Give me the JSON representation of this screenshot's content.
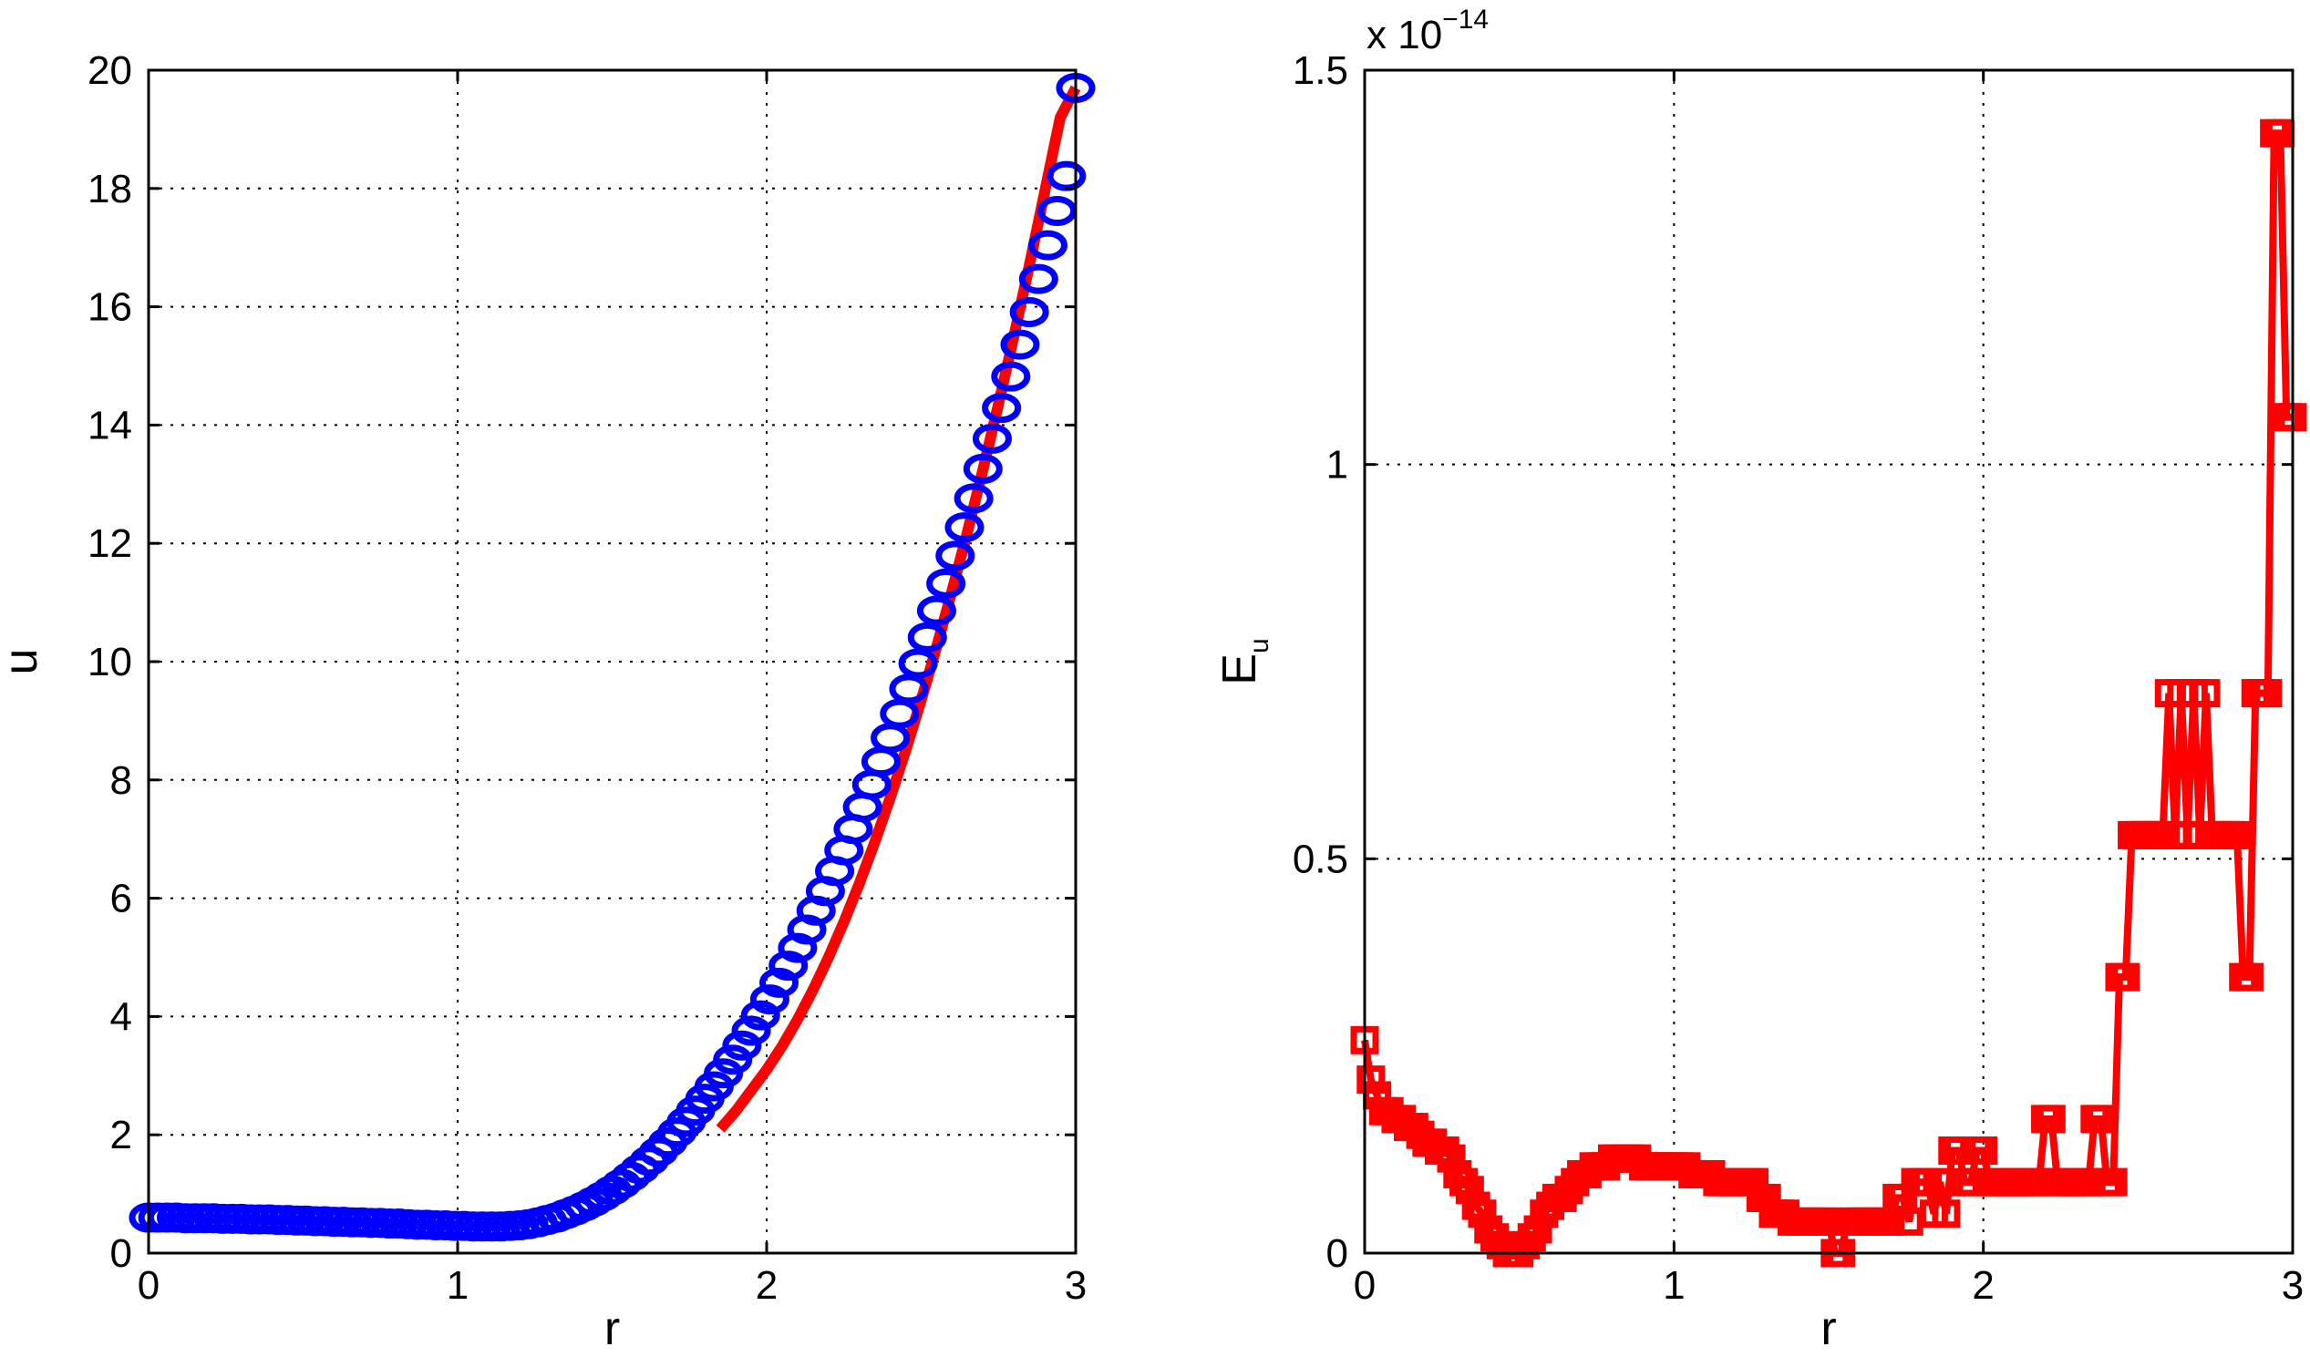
{
  "chart_data": [
    {
      "type": "line",
      "xlabel": "r",
      "ylabel": "u",
      "xlim": [
        0,
        3
      ],
      "ylim": [
        0,
        20
      ],
      "xticks": [
        "0",
        "1",
        "2",
        "3"
      ],
      "yticks": [
        "0",
        "2",
        "4",
        "6",
        "8",
        "10",
        "12",
        "14",
        "16",
        "18",
        "20"
      ],
      "grid": true,
      "series": [
        {
          "style": "blue-circles",
          "color": "#0000ff",
          "x": [
            0.0,
            0.03,
            0.06,
            0.09,
            0.12,
            0.15,
            0.18,
            0.21,
            0.24,
            0.27,
            0.3,
            0.33,
            0.36,
            0.39,
            0.42,
            0.45,
            0.48,
            0.51,
            0.54,
            0.57,
            0.6,
            0.63,
            0.66,
            0.69,
            0.72,
            0.75,
            0.78,
            0.81,
            0.84,
            0.87,
            0.9,
            0.93,
            0.96,
            0.99,
            1.02,
            1.05,
            1.08,
            1.11,
            1.14,
            1.17,
            1.2,
            1.23,
            1.26,
            1.29,
            1.32,
            1.35,
            1.38,
            1.41,
            1.44,
            1.47,
            1.5,
            1.53,
            1.56,
            1.59,
            1.62,
            1.65,
            1.68,
            1.71,
            1.74,
            1.77,
            1.8,
            1.83,
            1.86,
            1.89,
            1.92,
            1.95,
            1.98,
            2.01,
            2.04,
            2.07,
            2.1,
            2.13,
            2.16,
            2.19,
            2.22,
            2.25,
            2.28,
            2.31,
            2.34,
            2.37,
            2.4,
            2.43,
            2.46,
            2.49,
            2.52,
            2.55,
            2.58,
            2.61,
            2.64,
            2.67,
            2.7,
            2.73,
            2.76,
            2.79,
            2.82,
            2.85,
            2.88,
            2.91,
            2.94,
            2.97,
            3.0
          ],
          "y": [
            0.6,
            0.6,
            0.6,
            0.6,
            0.59,
            0.59,
            0.59,
            0.59,
            0.58,
            0.58,
            0.58,
            0.57,
            0.57,
            0.57,
            0.56,
            0.56,
            0.55,
            0.55,
            0.54,
            0.54,
            0.53,
            0.53,
            0.52,
            0.52,
            0.51,
            0.51,
            0.5,
            0.5,
            0.49,
            0.48,
            0.48,
            0.47,
            0.47,
            0.46,
            0.46,
            0.45,
            0.45,
            0.45,
            0.45,
            0.46,
            0.47,
            0.49,
            0.52,
            0.56,
            0.6,
            0.66,
            0.72,
            0.79,
            0.87,
            0.96,
            1.06,
            1.17,
            1.29,
            1.42,
            1.56,
            1.71,
            1.87,
            2.04,
            2.22,
            2.41,
            2.61,
            2.82,
            3.04,
            3.27,
            3.51,
            3.76,
            4.02,
            4.29,
            4.57,
            4.86,
            5.16,
            5.47,
            5.79,
            6.12,
            6.46,
            6.81,
            7.17,
            7.54,
            7.92,
            8.31,
            8.71,
            9.12,
            9.54,
            9.97,
            10.41,
            10.86,
            11.32,
            11.79,
            12.27,
            12.76,
            13.26,
            13.77,
            14.29,
            14.82,
            15.36,
            15.91,
            16.47,
            17.04,
            17.62,
            18.21,
            19.7
          ]
        },
        {
          "style": "red-line",
          "color": "#ff0000",
          "x": [
            1.85,
            1.9,
            1.95,
            2.0,
            2.05,
            2.1,
            2.15,
            2.2,
            2.25,
            2.3,
            2.35,
            2.4,
            2.45,
            2.5,
            2.55,
            2.6,
            2.65,
            2.7,
            2.75,
            2.8,
            2.85,
            2.9,
            2.95,
            3.0
          ],
          "y": [
            2.1,
            2.4,
            2.75,
            3.1,
            3.5,
            3.95,
            4.45,
            5.0,
            5.6,
            6.25,
            6.95,
            7.7,
            8.5,
            9.35,
            10.25,
            11.2,
            12.2,
            13.25,
            14.35,
            15.5,
            16.7,
            17.95,
            19.2,
            19.7
          ]
        }
      ]
    },
    {
      "type": "line",
      "xlabel": "r",
      "ylabel": "E",
      "ylabel_subscript": "u",
      "exponent_label": "x 10",
      "exponent_power": "−14",
      "xlim": [
        0,
        3
      ],
      "ylim": [
        0,
        1.5
      ],
      "xticks": [
        "0",
        "1",
        "2",
        "3"
      ],
      "yticks": [
        "0",
        "0.5",
        "1",
        "1.5"
      ],
      "grid": true,
      "series": [
        {
          "style": "red-squares",
          "color": "#ff0000",
          "x": [
            0.0,
            0.02,
            0.04,
            0.06,
            0.08,
            0.1,
            0.12,
            0.14,
            0.16,
            0.18,
            0.2,
            0.22,
            0.24,
            0.26,
            0.28,
            0.3,
            0.32,
            0.34,
            0.36,
            0.38,
            0.4,
            0.42,
            0.44,
            0.46,
            0.48,
            0.5,
            0.52,
            0.54,
            0.56,
            0.58,
            0.6,
            0.62,
            0.64,
            0.66,
            0.68,
            0.7,
            0.72,
            0.74,
            0.76,
            0.78,
            0.8,
            0.82,
            0.84,
            0.86,
            0.88,
            0.9,
            0.92,
            0.94,
            0.96,
            0.98,
            1.0,
            1.02,
            1.04,
            1.06,
            1.08,
            1.1,
            1.12,
            1.14,
            1.16,
            1.18,
            1.2,
            1.22,
            1.24,
            1.26,
            1.28,
            1.3,
            1.32,
            1.34,
            1.36,
            1.38,
            1.4,
            1.42,
            1.44,
            1.46,
            1.48,
            1.5,
            1.52,
            1.54,
            1.56,
            1.58,
            1.6,
            1.62,
            1.64,
            1.66,
            1.68,
            1.7,
            1.72,
            1.74,
            1.76,
            1.78,
            1.8,
            1.82,
            1.84,
            1.86,
            1.88,
            1.9,
            1.92,
            1.94,
            1.96,
            1.98,
            2.0,
            2.02,
            2.04,
            2.06,
            2.08,
            2.1,
            2.12,
            2.14,
            2.16,
            2.18,
            2.2,
            2.22,
            2.24,
            2.26,
            2.28,
            2.3,
            2.32,
            2.34,
            2.36,
            2.38,
            2.4,
            2.42,
            2.44,
            2.46,
            2.48,
            2.5,
            2.52,
            2.54,
            2.56,
            2.58,
            2.6,
            2.62,
            2.64,
            2.66,
            2.68,
            2.7,
            2.72,
            2.74,
            2.76,
            2.78,
            2.8,
            2.82,
            2.84,
            2.86,
            2.88,
            2.9,
            2.92,
            2.94,
            2.96,
            2.98,
            3.0
          ],
          "y": [
            0.27,
            0.22,
            0.2,
            0.18,
            0.18,
            0.17,
            0.17,
            0.16,
            0.16,
            0.15,
            0.14,
            0.14,
            0.13,
            0.13,
            0.12,
            0.1,
            0.09,
            0.08,
            0.06,
            0.05,
            0.03,
            0.02,
            0.01,
            0.0,
            0.0,
            0.0,
            0.01,
            0.02,
            0.03,
            0.05,
            0.06,
            0.07,
            0.07,
            0.08,
            0.09,
            0.1,
            0.1,
            0.11,
            0.11,
            0.11,
            0.12,
            0.12,
            0.12,
            0.12,
            0.12,
            0.11,
            0.11,
            0.11,
            0.11,
            0.11,
            0.11,
            0.11,
            0.11,
            0.1,
            0.1,
            0.1,
            0.1,
            0.09,
            0.09,
            0.09,
            0.09,
            0.09,
            0.09,
            0.09,
            0.07,
            0.07,
            0.05,
            0.05,
            0.05,
            0.04,
            0.04,
            0.04,
            0.04,
            0.04,
            0.04,
            0.04,
            0.0,
            0.0,
            0.04,
            0.04,
            0.04,
            0.04,
            0.04,
            0.04,
            0.04,
            0.04,
            0.07,
            0.07,
            0.04,
            0.09,
            0.09,
            0.09,
            0.05,
            0.09,
            0.05,
            0.13,
            0.13,
            0.09,
            0.09,
            0.13,
            0.13,
            0.09,
            0.09,
            0.09,
            0.09,
            0.09,
            0.09,
            0.09,
            0.09,
            0.09,
            0.17,
            0.17,
            0.09,
            0.09,
            0.09,
            0.09,
            0.09,
            0.09,
            0.17,
            0.17,
            0.09,
            0.09,
            0.35,
            0.35,
            0.53,
            0.53,
            0.53,
            0.53,
            0.53,
            0.53,
            0.71,
            0.53,
            0.71,
            0.53,
            0.71,
            0.53,
            0.71,
            0.53,
            0.53,
            0.53,
            0.53,
            0.53,
            0.35,
            0.35,
            0.71,
            0.71,
            0.71,
            1.42,
            1.42,
            1.06,
            1.06
          ]
        }
      ]
    }
  ]
}
